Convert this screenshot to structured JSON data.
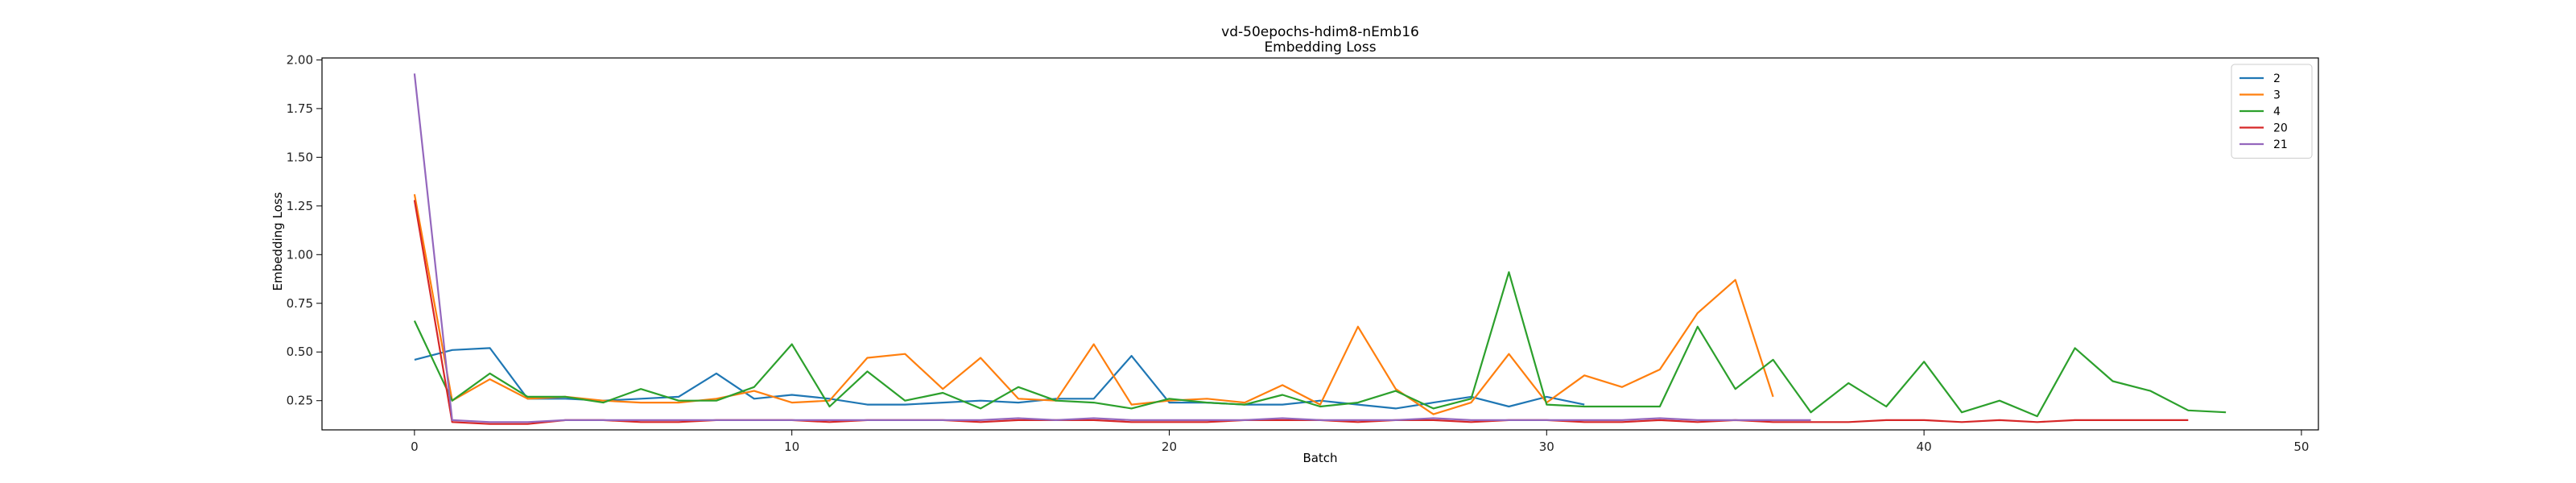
{
  "chart_data": {
    "type": "line",
    "title": "vd-50epochs-hdim8-nEmb16",
    "subtitle": "Embedding Loss",
    "xlabel": "Batch",
    "ylabel": "Embedding Loss",
    "xlim": [
      -2.45,
      50.45
    ],
    "ylim": [
      0.1,
      2.01
    ],
    "xticks": [
      0,
      10,
      20,
      30,
      40,
      50
    ],
    "yticks": [
      0.25,
      0.5,
      0.75,
      1.0,
      1.25,
      1.5,
      1.75,
      2.0
    ],
    "ytick_labels": [
      "0.25",
      "0.50",
      "0.75",
      "1.00",
      "1.25",
      "1.50",
      "1.75",
      "2.00"
    ],
    "grid": false,
    "legend": "top-right",
    "series": [
      {
        "name": "2",
        "color": "#1f77b4",
        "x_start": 0,
        "values": [
          0.46,
          0.51,
          0.52,
          0.26,
          0.26,
          0.25,
          0.26,
          0.27,
          0.39,
          0.26,
          0.28,
          0.26,
          0.23,
          0.23,
          0.24,
          0.25,
          0.24,
          0.26,
          0.26,
          0.48,
          0.24,
          0.24,
          0.23,
          0.23,
          0.25,
          0.23,
          0.21,
          0.24,
          0.27,
          0.22,
          0.27,
          0.23
        ]
      },
      {
        "name": "3",
        "color": "#ff7f0e",
        "x_start": 0,
        "values": [
          1.31,
          0.25,
          0.36,
          0.26,
          0.27,
          0.25,
          0.24,
          0.24,
          0.26,
          0.3,
          0.24,
          0.25,
          0.47,
          0.49,
          0.31,
          0.47,
          0.26,
          0.25,
          0.54,
          0.23,
          0.25,
          0.26,
          0.24,
          0.33,
          0.23,
          0.63,
          0.31,
          0.18,
          0.24,
          0.49,
          0.24,
          0.38,
          0.32,
          0.41,
          0.7,
          0.87,
          0.27
        ]
      },
      {
        "name": "4",
        "color": "#2ca02c",
        "x_start": 0,
        "values": [
          0.66,
          0.25,
          0.39,
          0.27,
          0.27,
          0.24,
          0.31,
          0.25,
          0.25,
          0.32,
          0.54,
          0.22,
          0.4,
          0.25,
          0.29,
          0.21,
          0.32,
          0.25,
          0.24,
          0.21,
          0.26,
          0.24,
          0.23,
          0.28,
          0.22,
          0.24,
          0.3,
          0.21,
          0.26,
          0.91,
          0.23,
          0.22,
          0.22,
          0.22,
          0.63,
          0.31,
          0.46,
          0.19,
          0.34,
          0.22,
          0.45,
          0.19,
          0.25,
          0.17,
          0.52,
          0.35,
          0.3,
          0.2,
          0.19
        ]
      },
      {
        "name": "20",
        "color": "#d62728",
        "x_start": 0,
        "values": [
          1.28,
          0.14,
          0.13,
          0.13,
          0.15,
          0.15,
          0.14,
          0.14,
          0.15,
          0.15,
          0.15,
          0.14,
          0.15,
          0.15,
          0.15,
          0.14,
          0.15,
          0.15,
          0.15,
          0.14,
          0.14,
          0.14,
          0.15,
          0.15,
          0.15,
          0.14,
          0.15,
          0.15,
          0.14,
          0.15,
          0.15,
          0.14,
          0.14,
          0.15,
          0.14,
          0.15,
          0.14,
          0.14,
          0.14,
          0.15,
          0.15,
          0.14,
          0.15,
          0.14,
          0.15,
          0.15,
          0.15,
          0.15
        ]
      },
      {
        "name": "21",
        "color": "#9467bd",
        "x_start": 0,
        "values": [
          1.93,
          0.15,
          0.14,
          0.14,
          0.15,
          0.15,
          0.15,
          0.15,
          0.15,
          0.15,
          0.15,
          0.15,
          0.15,
          0.15,
          0.15,
          0.15,
          0.16,
          0.15,
          0.16,
          0.15,
          0.15,
          0.15,
          0.15,
          0.16,
          0.15,
          0.15,
          0.15,
          0.16,
          0.15,
          0.15,
          0.15,
          0.15,
          0.15,
          0.16,
          0.15,
          0.15,
          0.15,
          0.15
        ]
      }
    ]
  }
}
